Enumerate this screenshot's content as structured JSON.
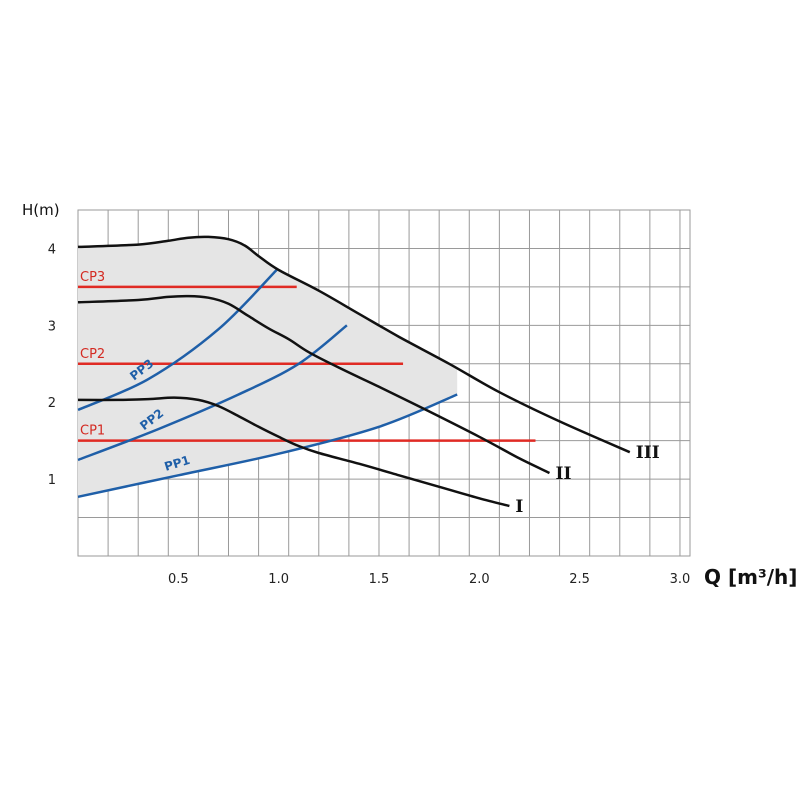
{
  "chart_data": {
    "type": "line",
    "ylabel": "H(m)",
    "xlabel": "Q [m³/h]",
    "xlim": [
      0,
      3.05
    ],
    "ylim": [
      0,
      4.5
    ],
    "x_ticks": [
      {
        "value": 0.5,
        "label": "0.5"
      },
      {
        "value": 1.0,
        "label": "1.0"
      },
      {
        "value": 1.5,
        "label": "1.5"
      },
      {
        "value": 2.0,
        "label": "2.0"
      },
      {
        "value": 2.5,
        "label": "2.5"
      },
      {
        "value": 3.0,
        "label": "3.0"
      }
    ],
    "y_ticks": [
      {
        "value": 1,
        "label": "1"
      },
      {
        "value": 2,
        "label": "2"
      },
      {
        "value": 3,
        "label": "3"
      },
      {
        "value": 4,
        "label": "4"
      }
    ],
    "grid": true,
    "region_fill": "#e5e5e5",
    "colors": {
      "speed": "#111111",
      "proportional": "#1f5fa8",
      "constant": "#e02b24",
      "grid": "#9a9a9a"
    },
    "speed_curves": [
      {
        "label": "I",
        "points": [
          [
            0,
            2.03
          ],
          [
            0.2,
            2.03
          ],
          [
            0.35,
            2.04
          ],
          [
            0.48,
            2.06
          ],
          [
            0.6,
            2.03
          ],
          [
            0.7,
            1.95
          ],
          [
            0.8,
            1.82
          ],
          [
            0.9,
            1.68
          ],
          [
            1.0,
            1.55
          ],
          [
            1.1,
            1.43
          ],
          [
            1.2,
            1.34
          ],
          [
            1.4,
            1.2
          ],
          [
            1.6,
            1.05
          ],
          [
            1.8,
            0.9
          ],
          [
            2.0,
            0.75
          ],
          [
            2.15,
            0.65
          ]
        ]
      },
      {
        "label": "II",
        "points": [
          [
            0,
            3.3
          ],
          [
            0.3,
            3.33
          ],
          [
            0.45,
            3.37
          ],
          [
            0.55,
            3.38
          ],
          [
            0.65,
            3.36
          ],
          [
            0.75,
            3.28
          ],
          [
            0.85,
            3.12
          ],
          [
            0.95,
            2.96
          ],
          [
            1.05,
            2.82
          ],
          [
            1.15,
            2.65
          ],
          [
            1.3,
            2.45
          ],
          [
            1.5,
            2.2
          ],
          [
            1.75,
            1.88
          ],
          [
            2.0,
            1.55
          ],
          [
            2.2,
            1.27
          ],
          [
            2.35,
            1.08
          ]
        ]
      },
      {
        "label": "III",
        "points": [
          [
            0,
            4.02
          ],
          [
            0.3,
            4.05
          ],
          [
            0.45,
            4.1
          ],
          [
            0.55,
            4.14
          ],
          [
            0.65,
            4.15
          ],
          [
            0.75,
            4.12
          ],
          [
            0.83,
            4.04
          ],
          [
            0.9,
            3.9
          ],
          [
            1.0,
            3.72
          ],
          [
            1.2,
            3.45
          ],
          [
            1.4,
            3.15
          ],
          [
            1.6,
            2.85
          ],
          [
            1.85,
            2.5
          ],
          [
            2.1,
            2.13
          ],
          [
            2.4,
            1.75
          ],
          [
            2.75,
            1.35
          ]
        ]
      }
    ],
    "proportional_curves": [
      {
        "name": "PP1",
        "points": [
          [
            0,
            0.77
          ],
          [
            0.5,
            1.05
          ],
          [
            1.0,
            1.33
          ],
          [
            1.5,
            1.68
          ],
          [
            1.89,
            2.1
          ]
        ]
      },
      {
        "name": "PP2",
        "points": [
          [
            0,
            1.25
          ],
          [
            0.4,
            1.65
          ],
          [
            0.8,
            2.1
          ],
          [
            1.1,
            2.5
          ],
          [
            1.34,
            3.0
          ]
        ]
      },
      {
        "name": "PP3",
        "points": [
          [
            0,
            1.9
          ],
          [
            0.35,
            2.3
          ],
          [
            0.7,
            2.95
          ],
          [
            0.99,
            3.72
          ]
        ]
      }
    ],
    "constant_lines": [
      {
        "name": "CP1",
        "y": 1.5,
        "x": [
          0,
          2.28
        ]
      },
      {
        "name": "CP2",
        "y": 2.5,
        "x": [
          0,
          1.62
        ]
      },
      {
        "name": "CP3",
        "y": 3.5,
        "x": [
          0,
          1.09
        ]
      }
    ]
  }
}
